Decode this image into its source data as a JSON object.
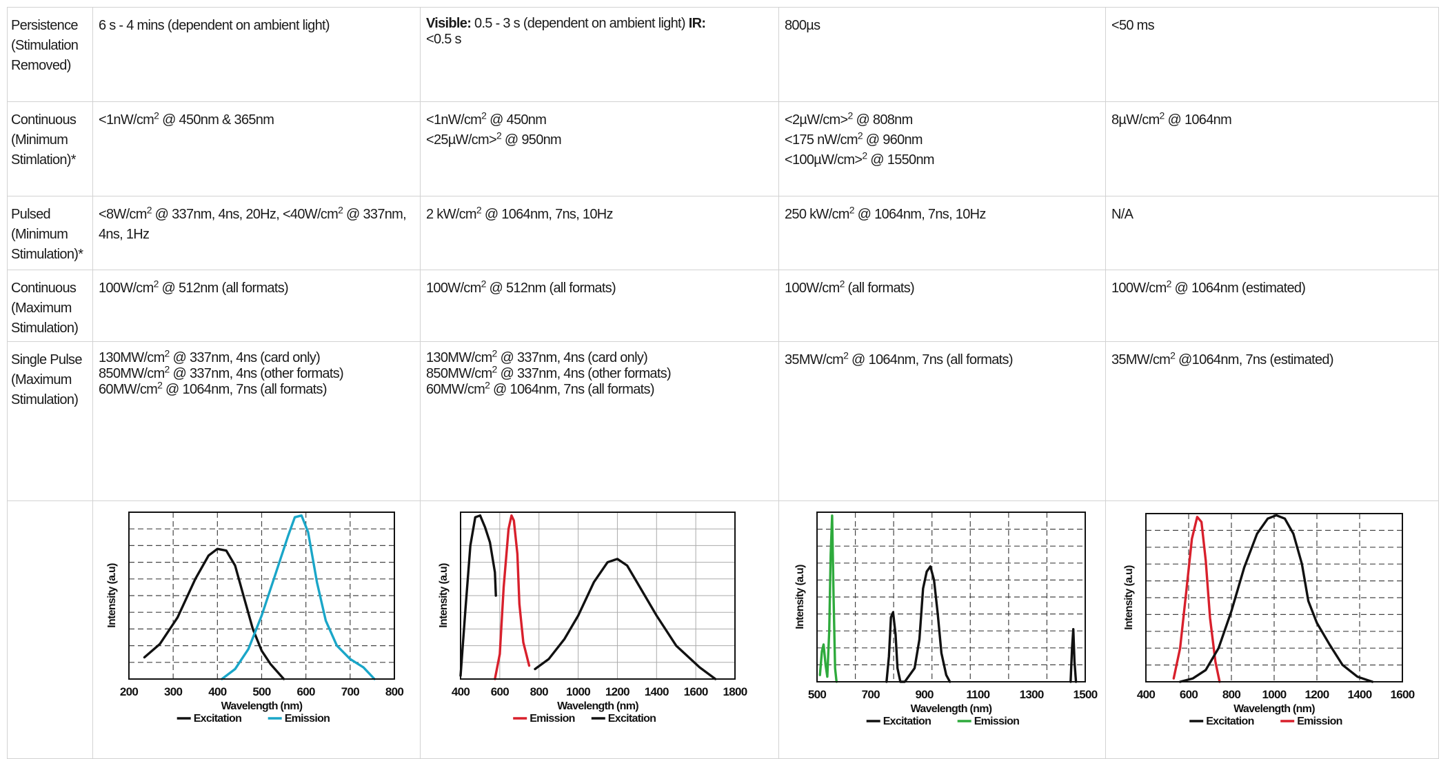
{
  "rows": [
    {
      "label": [
        "Persistence",
        "(Stimulation",
        "Removed)"
      ],
      "cells": [
        {
          "text": "6 s - 4 mins (dependent on ambient light)"
        },
        {
          "bold1": "Visible:",
          "text1": " 0.5 - 3 s (dependent on ambient light) ",
          "bold2": "IR:",
          "text2": " <0.5 s"
        },
        {
          "text": "800µs"
        },
        {
          "text": "<50 ms"
        }
      ]
    },
    {
      "label": [
        "Continuous",
        "(Minimum",
        "Stimlation)*"
      ],
      "cells": [
        {
          "lines": [
            [
              "<1nW/cm",
              "2",
              " @ 450nm & 365nm"
            ]
          ]
        },
        {
          "lines": [
            [
              "<1nW/cm",
              "2",
              " @ 450nm"
            ],
            [
              "<25µW/cm>",
              "2",
              " @ 950nm"
            ]
          ]
        },
        {
          "lines": [
            [
              "<2µW/cm>",
              "2",
              " @ 808nm"
            ],
            [
              "<175 nW/cm",
              "2",
              " @ 960nm"
            ],
            [
              "<100µW/cm>",
              "2",
              " @ 1550nm"
            ]
          ]
        },
        {
          "lines": [
            [
              "8µW/cm",
              "2",
              " @ 1064nm"
            ]
          ]
        }
      ]
    },
    {
      "label": [
        "Pulsed",
        "(Minimum",
        "Stimulation)*"
      ],
      "cells": [
        {
          "lines": [
            [
              "<8W/cm",
              "2",
              " @ 337nm, 4ns, 20Hz, <40W/cm",
              "2",
              " @ 337nm, 4ns, 1Hz"
            ]
          ]
        },
        {
          "lines": [
            [
              "2 kW/cm",
              "2",
              " @ 1064nm, 7ns, 10Hz"
            ]
          ]
        },
        {
          "lines": [
            [
              "250 kW/cm",
              "2",
              " @ 1064nm, 7ns, 10Hz"
            ]
          ]
        },
        {
          "lines": [
            [
              "N/A"
            ]
          ]
        }
      ]
    },
    {
      "label": [
        "Continuous",
        "(Maximum",
        "Stimulation)"
      ],
      "cells": [
        {
          "lines": [
            [
              "100W/cm",
              "2",
              " @ 512nm (all formats)"
            ]
          ]
        },
        {
          "lines": [
            [
              "100W/cm",
              "2",
              " @ 512nm (all formats)"
            ]
          ]
        },
        {
          "lines": [
            [
              "100W/cm",
              "2",
              " (all formats)"
            ]
          ]
        },
        {
          "lines": [
            [
              "100W/cm",
              "2",
              " @ 1064nm (estimated)"
            ]
          ]
        }
      ]
    },
    {
      "label": [
        "Single Pulse",
        "(Maximum",
        "Stimulation)"
      ],
      "cells": [
        {
          "lines": [
            [
              "130MW/cm",
              "2",
              " @ 337nm, 4ns (card only)"
            ],
            [
              "850MW/cm",
              "2",
              " @ 337nm, 4ns (other formats)"
            ],
            [
              "60MW/cm",
              "2",
              " @ 1064nm, 7ns (all formats)"
            ]
          ]
        },
        {
          "lines": [
            [
              "130MW/cm",
              "2",
              " @ 337nm, 4ns (card only)"
            ],
            [
              "850MW/cm",
              "2",
              " @ 337nm, 4ns (other formats)"
            ],
            [
              "60MW/cm",
              "2",
              " @ 1064nm, 7ns (all formats)"
            ]
          ]
        },
        {
          "lines": [
            [
              "35MW/cm",
              "2",
              " @ 1064nm, 7ns (all formats)"
            ]
          ]
        },
        {
          "lines": [
            [
              "35MW/cm",
              "2",
              " @1064nm, 7ns (estimated)"
            ]
          ]
        }
      ]
    }
  ],
  "chart_data": [
    {
      "type": "line",
      "xlabel": "Wavelength (nm)",
      "ylabel": "Intensity (a.u)",
      "xticks": [
        "200",
        "300",
        "400",
        "500",
        "600",
        "700",
        "800"
      ],
      "xlim": [
        200,
        800
      ],
      "ylim": [
        0,
        1
      ],
      "grid": true,
      "grid_style": "dashed",
      "legend_position": "bottom",
      "legend": [
        {
          "name": "Excitation",
          "color": "#111111"
        },
        {
          "name": "Emission",
          "color": "#1aa6c8"
        }
      ],
      "series": [
        {
          "name": "Excitation",
          "color": "#111111",
          "points": [
            [
              235,
              0.13
            ],
            [
              270,
              0.21
            ],
            [
              310,
              0.37
            ],
            [
              350,
              0.6
            ],
            [
              380,
              0.74
            ],
            [
              400,
              0.78
            ],
            [
              420,
              0.77
            ],
            [
              440,
              0.68
            ],
            [
              460,
              0.49
            ],
            [
              480,
              0.3
            ],
            [
              500,
              0.17
            ],
            [
              520,
              0.09
            ],
            [
              550,
              0.0
            ]
          ]
        },
        {
          "name": "Emission",
          "color": "#1aa6c8",
          "points": [
            [
              410,
              0.0
            ],
            [
              440,
              0.06
            ],
            [
              470,
              0.18
            ],
            [
              500,
              0.38
            ],
            [
              530,
              0.62
            ],
            [
              560,
              0.86
            ],
            [
              575,
              0.97
            ],
            [
              590,
              0.98
            ],
            [
              605,
              0.88
            ],
            [
              625,
              0.58
            ],
            [
              645,
              0.35
            ],
            [
              670,
              0.2
            ],
            [
              700,
              0.12
            ],
            [
              730,
              0.07
            ],
            [
              755,
              0.0
            ]
          ]
        }
      ]
    },
    {
      "type": "line",
      "xlabel": "Wavelength (nm)",
      "ylabel": "Intensity (a.u)",
      "xticks": [
        "400",
        "600",
        "800",
        "1000",
        "1200",
        "1400",
        "1600",
        "1800"
      ],
      "xlim": [
        400,
        1800
      ],
      "ylim": [
        0,
        1
      ],
      "grid": true,
      "grid_style": "solid",
      "legend_position": "bottom",
      "legend": [
        {
          "name": "Emission",
          "color": "#d8202c"
        },
        {
          "name": "Excitation",
          "color": "#111111"
        }
      ],
      "series": [
        {
          "name": "Excitation",
          "color": "#111111",
          "points": [
            [
              400,
              0.02
            ],
            [
              425,
              0.42
            ],
            [
              450,
              0.8
            ],
            [
              475,
              0.97
            ],
            [
              500,
              0.98
            ],
            [
              525,
              0.91
            ],
            [
              550,
              0.82
            ],
            [
              575,
              0.64
            ],
            [
              580,
              0.5
            ]
          ]
        },
        {
          "name": "Emission",
          "color": "#d8202c",
          "points": [
            [
              575,
              0.0
            ],
            [
              600,
              0.15
            ],
            [
              620,
              0.55
            ],
            [
              645,
              0.9
            ],
            [
              660,
              0.98
            ],
            [
              672,
              0.95
            ],
            [
              690,
              0.75
            ],
            [
              700,
              0.45
            ],
            [
              720,
              0.22
            ],
            [
              750,
              0.08
            ]
          ]
        },
        {
          "name": "Excitation",
          "color": "#111111",
          "points": [
            [
              780,
              0.06
            ],
            [
              850,
              0.12
            ],
            [
              930,
              0.24
            ],
            [
              1000,
              0.38
            ],
            [
              1080,
              0.58
            ],
            [
              1150,
              0.7
            ],
            [
              1200,
              0.72
            ],
            [
              1250,
              0.68
            ],
            [
              1300,
              0.58
            ],
            [
              1400,
              0.38
            ],
            [
              1500,
              0.2
            ],
            [
              1620,
              0.07
            ],
            [
              1700,
              0.0
            ]
          ]
        }
      ]
    },
    {
      "type": "line",
      "xlabel": "Wavelength (nm)",
      "ylabel": "Intensity (a.u)",
      "xticks": [
        "500",
        "700",
        "900",
        "1100",
        "1300",
        "1500"
      ],
      "xlim": [
        500,
        1600
      ],
      "ylim": [
        0,
        1
      ],
      "grid": true,
      "grid_style": "dashed",
      "legend_position": "bottom",
      "legend": [
        {
          "name": "Excitation",
          "color": "#111111"
        },
        {
          "name": "Emission",
          "color": "#2eaa3c"
        }
      ],
      "series": [
        {
          "name": "Emission",
          "color": "#2eaa3c",
          "points": [
            [
              512,
              0.04
            ],
            [
              520,
              0.18
            ],
            [
              527,
              0.22
            ],
            [
              535,
              0.1
            ],
            [
              542,
              0.03
            ],
            [
              550,
              0.3
            ],
            [
              556,
              0.75
            ],
            [
              562,
              0.98
            ],
            [
              568,
              0.5
            ],
            [
              574,
              0.08
            ],
            [
              580,
              0.0
            ]
          ]
        },
        {
          "name": "Excitation",
          "color": "#111111",
          "points": [
            [
              785,
              0.0
            ],
            [
              795,
              0.15
            ],
            [
              803,
              0.38
            ],
            [
              812,
              0.41
            ],
            [
              822,
              0.28
            ],
            [
              830,
              0.08
            ],
            [
              842,
              0.0
            ],
            [
              860,
              0.0
            ],
            [
              900,
              0.08
            ],
            [
              920,
              0.25
            ],
            [
              935,
              0.55
            ],
            [
              950,
              0.65
            ],
            [
              965,
              0.68
            ],
            [
              980,
              0.6
            ],
            [
              995,
              0.4
            ],
            [
              1010,
              0.17
            ],
            [
              1030,
              0.04
            ],
            [
              1045,
              0.0
            ]
          ]
        },
        {
          "name": "Excitation",
          "color": "#111111",
          "points": [
            [
              1540,
              0.0
            ],
            [
              1546,
              0.2
            ],
            [
              1551,
              0.31
            ],
            [
              1556,
              0.12
            ],
            [
              1562,
              0.0
            ]
          ]
        }
      ]
    },
    {
      "type": "line",
      "xlabel": "Wavelength (nm)",
      "ylabel": "Intensity (a.u)",
      "xticks": [
        "400",
        "600",
        "800",
        "1000",
        "1200",
        "1400",
        "1600"
      ],
      "xlim": [
        400,
        1600
      ],
      "ylim": [
        0,
        1
      ],
      "grid": true,
      "grid_style": "dashed",
      "legend_position": "bottom",
      "legend": [
        {
          "name": "Excitation",
          "color": "#111111"
        },
        {
          "name": "Emission",
          "color": "#d8202c"
        }
      ],
      "series": [
        {
          "name": "Emission",
          "color": "#d8202c",
          "points": [
            [
              530,
              0.02
            ],
            [
              560,
              0.2
            ],
            [
              590,
              0.55
            ],
            [
              615,
              0.85
            ],
            [
              640,
              0.98
            ],
            [
              660,
              0.95
            ],
            [
              680,
              0.72
            ],
            [
              700,
              0.38
            ],
            [
              725,
              0.12
            ],
            [
              745,
              0.0
            ]
          ]
        },
        {
          "name": "Excitation",
          "color": "#111111",
          "points": [
            [
              560,
              0.0
            ],
            [
              620,
              0.02
            ],
            [
              680,
              0.07
            ],
            [
              740,
              0.2
            ],
            [
              800,
              0.42
            ],
            [
              860,
              0.68
            ],
            [
              920,
              0.88
            ],
            [
              970,
              0.97
            ],
            [
              1010,
              0.99
            ],
            [
              1050,
              0.97
            ],
            [
              1090,
              0.88
            ],
            [
              1130,
              0.7
            ],
            [
              1160,
              0.48
            ],
            [
              1200,
              0.35
            ],
            [
              1260,
              0.22
            ],
            [
              1320,
              0.1
            ],
            [
              1390,
              0.03
            ],
            [
              1460,
              0.0
            ]
          ]
        }
      ]
    }
  ]
}
